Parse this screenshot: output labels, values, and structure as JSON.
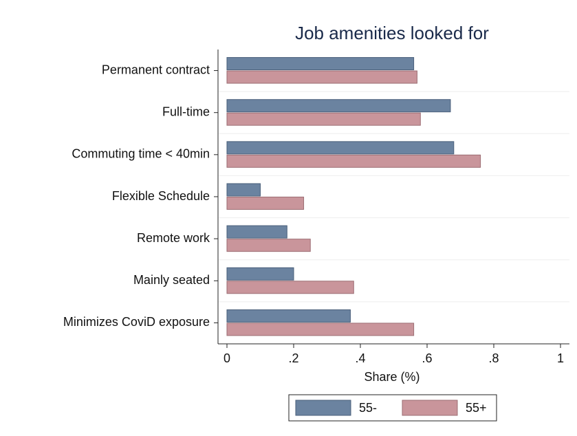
{
  "chart_data": {
    "type": "barh",
    "title": "Job amenities looked for",
    "categories": [
      "Permanent contract",
      "Full-time",
      "Commuting time < 40min",
      "Flexible Schedule",
      "Remote work",
      "Mainly seated",
      "Minimizes CoviD exposure"
    ],
    "series": [
      {
        "name": "55-",
        "color": "#6b83a0",
        "values": [
          0.56,
          0.67,
          0.68,
          0.1,
          0.18,
          0.2,
          0.37
        ]
      },
      {
        "name": "55+",
        "color": "#c9959b",
        "values": [
          0.57,
          0.58,
          0.76,
          0.23,
          0.25,
          0.38,
          0.56
        ]
      }
    ],
    "xlabel": "Share (%)",
    "xlim": [
      0,
      1
    ],
    "xticks": [
      0,
      {
        "value": 0.2,
        "label": ".2"
      },
      {
        "value": 0.4,
        "label": ".4"
      },
      {
        "value": 0.6,
        "label": ".6"
      },
      {
        "value": 0.8,
        "label": ".8"
      },
      1
    ],
    "legend": "bottom"
  }
}
